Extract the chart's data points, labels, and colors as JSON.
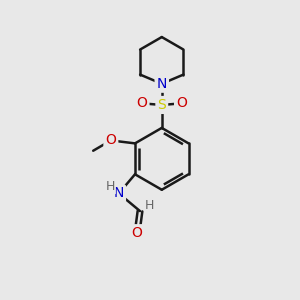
{
  "background_color": "#e8e8e8",
  "bond_color": "#1a1a1a",
  "atom_colors": {
    "N": "#0000cc",
    "O": "#cc0000",
    "S": "#cccc00",
    "C": "#1a1a1a",
    "H": "#666666"
  },
  "figsize": [
    3.0,
    3.0
  ],
  "dpi": 100,
  "bond_lw": 1.8,
  "font_size_atom": 10,
  "font_size_h": 9
}
